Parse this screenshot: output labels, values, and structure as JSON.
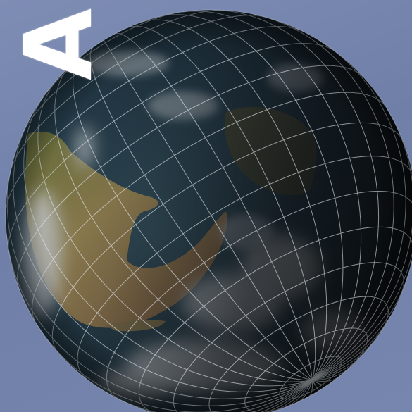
{
  "slide": {
    "title_fragment": "A",
    "background_color": "#7585ad"
  },
  "globe": {
    "ocean_color": "#2b4a5e",
    "land_color": "#a89456",
    "night_color": "#111316",
    "grid_color": "#e8eef5",
    "grid": true
  }
}
